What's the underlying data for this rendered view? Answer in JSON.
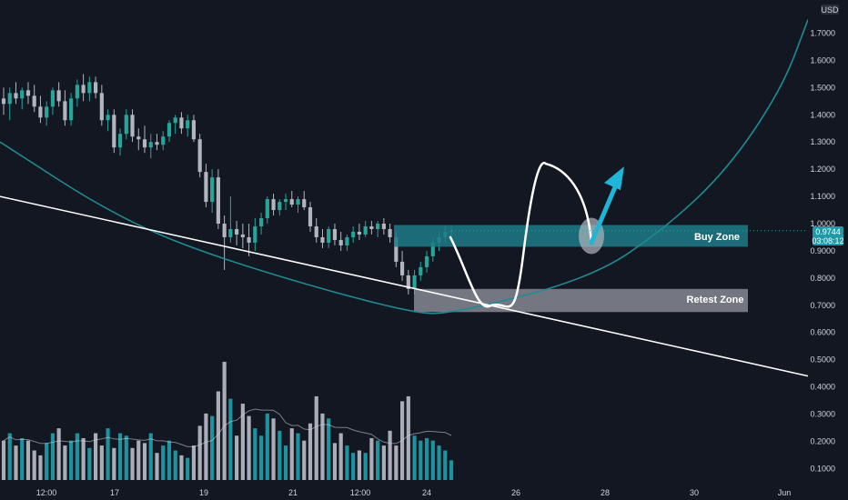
{
  "colors": {
    "background": "#131722",
    "up": "#26a69a",
    "up_alt": "#1e9aa8",
    "down": "#b2b5be",
    "trendline": "#ffffff",
    "curve": "#1f8a94",
    "buy_zone": "#1f7a87",
    "retest_zone": "#9598a1",
    "arrow": "#1fb5d6",
    "price_badge": "#1e9aa8"
  },
  "price_scale": {
    "currency": "USD",
    "ticks": [
      "1.7000",
      "1.6000",
      "1.5000",
      "1.4000",
      "1.3000",
      "1.2000",
      "1.1000",
      "1.0000",
      "0.9000",
      "0.8000",
      "0.7000",
      "0.6000",
      "0.5000",
      "0.4000",
      "0.3000",
      "0.2000",
      "0.1000"
    ],
    "last_price": "0.9744",
    "countdown": "03:08:12"
  },
  "time_axis": {
    "ticks": [
      "12:00",
      "17",
      "19",
      "21",
      "12:00",
      "24",
      "26",
      "28",
      "30",
      "Jun"
    ]
  },
  "annotations": {
    "buy_zone_label": "Buy Zone",
    "retest_zone_label": "Retest Zone"
  },
  "chart_data": {
    "type": "candlestick",
    "y_unit": "USD",
    "ylim": [
      0.05,
      1.8
    ],
    "candles": [
      [
        1.46,
        1.5,
        1.4,
        1.44
      ],
      [
        1.44,
        1.5,
        1.38,
        1.48
      ],
      [
        1.48,
        1.52,
        1.44,
        1.46
      ],
      [
        1.46,
        1.5,
        1.42,
        1.49
      ],
      [
        1.49,
        1.52,
        1.44,
        1.47
      ],
      [
        1.47,
        1.51,
        1.41,
        1.43
      ],
      [
        1.43,
        1.47,
        1.37,
        1.39
      ],
      [
        1.39,
        1.45,
        1.36,
        1.43
      ],
      [
        1.43,
        1.5,
        1.4,
        1.49
      ],
      [
        1.49,
        1.52,
        1.43,
        1.45
      ],
      [
        1.45,
        1.49,
        1.36,
        1.38
      ],
      [
        1.38,
        1.48,
        1.36,
        1.46
      ],
      [
        1.46,
        1.53,
        1.43,
        1.51
      ],
      [
        1.51,
        1.55,
        1.45,
        1.48
      ],
      [
        1.48,
        1.54,
        1.45,
        1.52
      ],
      [
        1.52,
        1.54,
        1.46,
        1.48
      ],
      [
        1.48,
        1.51,
        1.36,
        1.38
      ],
      [
        1.38,
        1.42,
        1.34,
        1.4
      ],
      [
        1.4,
        1.42,
        1.26,
        1.28
      ],
      [
        1.28,
        1.35,
        1.25,
        1.33
      ],
      [
        1.33,
        1.42,
        1.31,
        1.4
      ],
      [
        1.4,
        1.42,
        1.3,
        1.32
      ],
      [
        1.32,
        1.35,
        1.27,
        1.31
      ],
      [
        1.31,
        1.36,
        1.26,
        1.28
      ],
      [
        1.28,
        1.33,
        1.24,
        1.3
      ],
      [
        1.3,
        1.33,
        1.27,
        1.29
      ],
      [
        1.29,
        1.34,
        1.27,
        1.32
      ],
      [
        1.32,
        1.38,
        1.3,
        1.37
      ],
      [
        1.37,
        1.4,
        1.33,
        1.39
      ],
      [
        1.39,
        1.41,
        1.33,
        1.35
      ],
      [
        1.35,
        1.4,
        1.32,
        1.38
      ],
      [
        1.38,
        1.4,
        1.3,
        1.31
      ],
      [
        1.31,
        1.33,
        1.17,
        1.19
      ],
      [
        1.19,
        1.22,
        1.06,
        1.08
      ],
      [
        1.08,
        1.2,
        1.04,
        1.17
      ],
      [
        1.17,
        1.2,
        0.98,
        1.0
      ],
      [
        1.0,
        1.03,
        0.83,
        0.95
      ],
      [
        0.95,
        1.1,
        0.93,
        0.98
      ],
      [
        0.98,
        1.01,
        0.92,
        0.96
      ],
      [
        0.96,
        1.0,
        0.91,
        0.95
      ],
      [
        0.95,
        1.0,
        0.88,
        0.93
      ],
      [
        0.93,
        1.02,
        0.9,
        0.99
      ],
      [
        0.99,
        1.04,
        0.96,
        1.02
      ],
      [
        1.02,
        1.1,
        1.0,
        1.09
      ],
      [
        1.09,
        1.11,
        1.03,
        1.05
      ],
      [
        1.05,
        1.09,
        1.03,
        1.08
      ],
      [
        1.08,
        1.11,
        1.05,
        1.09
      ],
      [
        1.09,
        1.12,
        1.06,
        1.07
      ],
      [
        1.07,
        1.1,
        1.04,
        1.09
      ],
      [
        1.09,
        1.12,
        1.05,
        1.06
      ],
      [
        1.06,
        1.08,
        0.97,
        0.99
      ],
      [
        0.99,
        1.02,
        0.93,
        0.95
      ],
      [
        0.95,
        0.98,
        0.91,
        0.93
      ],
      [
        0.93,
        0.99,
        0.91,
        0.98
      ],
      [
        0.98,
        1.0,
        0.92,
        0.94
      ],
      [
        0.94,
        0.97,
        0.9,
        0.92
      ],
      [
        0.92,
        0.96,
        0.9,
        0.95
      ],
      [
        0.95,
        0.99,
        0.93,
        0.97
      ],
      [
        0.97,
        1.0,
        0.94,
        0.96
      ],
      [
        0.96,
        1.01,
        0.95,
        0.99
      ],
      [
        0.99,
        1.01,
        0.96,
        0.98
      ],
      [
        0.98,
        1.01,
        0.95,
        1.0
      ],
      [
        1.0,
        1.02,
        0.96,
        0.98
      ],
      [
        0.98,
        1.0,
        0.93,
        0.95
      ],
      [
        0.95,
        0.97,
        0.84,
        0.86
      ],
      [
        0.86,
        0.9,
        0.79,
        0.81
      ],
      [
        0.81,
        0.83,
        0.74,
        0.76
      ],
      [
        0.76,
        0.83,
        0.74,
        0.81
      ],
      [
        0.81,
        0.86,
        0.79,
        0.84
      ],
      [
        0.84,
        0.9,
        0.82,
        0.88
      ],
      [
        0.88,
        0.95,
        0.86,
        0.93
      ],
      [
        0.93,
        0.97,
        0.9,
        0.95
      ],
      [
        0.95,
        0.99,
        0.93,
        0.97
      ],
      [
        0.97,
        0.99,
        0.95,
        0.974
      ]
    ],
    "volume": [
      0.16,
      0.19,
      0.14,
      0.17,
      0.16,
      0.12,
      0.1,
      0.15,
      0.19,
      0.21,
      0.14,
      0.16,
      0.19,
      0.17,
      0.13,
      0.19,
      0.14,
      0.21,
      0.13,
      0.19,
      0.18,
      0.13,
      0.16,
      0.15,
      0.19,
      0.11,
      0.14,
      0.16,
      0.12,
      0.1,
      0.09,
      0.14,
      0.22,
      0.27,
      0.26,
      0.36,
      0.48,
      0.33,
      0.18,
      0.31,
      0.26,
      0.21,
      0.18,
      0.27,
      0.25,
      0.2,
      0.14,
      0.21,
      0.19,
      0.16,
      0.23,
      0.34,
      0.27,
      0.25,
      0.15,
      0.19,
      0.14,
      0.11,
      0.12,
      0.11,
      0.17,
      0.16,
      0.14,
      0.2,
      0.14,
      0.32,
      0.34,
      0.18,
      0.16,
      0.17,
      0.16,
      0.14,
      0.12,
      0.08
    ],
    "trendline": {
      "start_x": 0,
      "start_price": 1.1,
      "end_x": 888,
      "end_price": 0.44
    },
    "curve": [
      [
        0,
        1.3
      ],
      [
        130,
        1.02
      ],
      [
        250,
        0.86
      ],
      [
        450,
        0.67
      ],
      [
        500,
        0.67
      ],
      [
        650,
        0.8
      ],
      [
        730,
        0.98
      ],
      [
        800,
        1.2
      ],
      [
        860,
        1.5
      ],
      [
        888,
        1.75
      ]
    ],
    "buy_zone": {
      "x_from": 433,
      "x_to": 822,
      "high": 0.995,
      "low": 0.915
    },
    "retest_zone": {
      "x_from": 455,
      "x_to": 822,
      "high": 0.76,
      "low": 0.675
    },
    "projection_path": [
      [
        495,
        0.95
      ],
      [
        540,
        0.7
      ],
      [
        560,
        0.75
      ],
      [
        600,
        1.22
      ],
      [
        640,
        1.15
      ],
      [
        650,
        0.93
      ]
    ],
    "projection_arrow": {
      "from": [
        650,
        0.93
      ],
      "to": [
        684,
        1.19
      ]
    },
    "highlight_circle": {
      "cx": 650,
      "price": 0.955
    },
    "legend": "none",
    "grid": false
  }
}
